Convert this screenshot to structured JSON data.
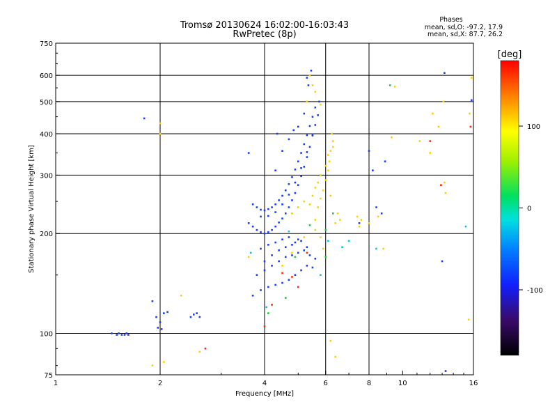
{
  "chart_data": {
    "type": "scatter",
    "title": "Tromsø 20130624 16:02:00-16:03:43",
    "subtitle": "RwPretec (8p)",
    "xlabel": "Frequency [MHz]",
    "ylabel": "Stationary phase Virtual Height [km]",
    "x_scale": "log",
    "y_scale": "log",
    "xlim": [
      1,
      16
    ],
    "ylim": [
      75,
      750
    ],
    "x_ticks": [
      1,
      2,
      4,
      6,
      8,
      10,
      16
    ],
    "y_ticks": [
      75,
      100,
      200,
      300,
      400,
      500,
      600,
      750
    ],
    "grid_x": [
      2,
      4,
      6,
      8
    ],
    "grid_y": [
      100,
      200,
      300,
      400,
      500,
      600
    ],
    "grid": true,
    "legend": {
      "title": "Phases",
      "lines": [
        "mean, sd,O: -97.2, 17.9",
        "mean, sd,X: 87.7, 26.2"
      ],
      "placement": "top-right"
    },
    "colorbar": {
      "label": "[deg]",
      "range": [
        -180,
        180
      ],
      "ticks": [
        100,
        0,
        -100
      ],
      "placement": "right"
    },
    "series": [
      {
        "name": "O",
        "phase_mean": -97.2,
        "color": "#1a3cff",
        "points": [
          [
            1.45,
            100
          ],
          [
            1.5,
            99
          ],
          [
            1.52,
            100
          ],
          [
            1.55,
            99
          ],
          [
            1.58,
            99
          ],
          [
            1.6,
            100
          ],
          [
            1.62,
            99
          ],
          [
            1.8,
            445
          ],
          [
            1.9,
            125
          ],
          [
            1.95,
            112
          ],
          [
            2.0,
            108
          ],
          [
            2.05,
            115
          ],
          [
            2.1,
            116
          ],
          [
            1.97,
            104
          ],
          [
            2.02,
            103
          ],
          [
            2.45,
            112
          ],
          [
            2.5,
            114
          ],
          [
            2.55,
            115
          ],
          [
            2.6,
            112
          ],
          [
            3.6,
            215
          ],
          [
            3.7,
            210
          ],
          [
            3.8,
            205
          ],
          [
            3.9,
            202
          ],
          [
            4.0,
            200
          ],
          [
            4.1,
            202
          ],
          [
            4.2,
            205
          ],
          [
            4.3,
            210
          ],
          [
            4.4,
            216
          ],
          [
            4.5,
            222
          ],
          [
            4.6,
            230
          ],
          [
            4.7,
            240
          ],
          [
            4.8,
            252
          ],
          [
            4.9,
            265
          ],
          [
            5.0,
            280
          ],
          [
            5.1,
            298
          ],
          [
            5.2,
            318
          ],
          [
            5.3,
            340
          ],
          [
            5.4,
            365
          ],
          [
            5.5,
            395
          ],
          [
            5.6,
            425
          ],
          [
            3.7,
            245
          ],
          [
            3.8,
            240
          ],
          [
            3.9,
            236
          ],
          [
            4.0,
            235
          ],
          [
            4.1,
            237
          ],
          [
            4.2,
            240
          ],
          [
            4.3,
            245
          ],
          [
            4.4,
            252
          ],
          [
            4.5,
            260
          ],
          [
            4.6,
            270
          ],
          [
            4.7,
            282
          ],
          [
            4.8,
            296
          ],
          [
            4.9,
            312
          ],
          [
            5.0,
            330
          ],
          [
            5.1,
            350
          ],
          [
            5.2,
            372
          ],
          [
            5.3,
            396
          ],
          [
            5.4,
            422
          ],
          [
            5.5,
            450
          ],
          [
            5.6,
            480
          ],
          [
            3.9,
            225
          ],
          [
            4.1,
            226
          ],
          [
            4.3,
            232
          ],
          [
            4.5,
            245
          ],
          [
            4.7,
            262
          ],
          [
            4.9,
            285
          ],
          [
            5.1,
            315
          ],
          [
            5.3,
            352
          ],
          [
            5.5,
            398
          ],
          [
            5.7,
            455
          ],
          [
            5.75,
            500
          ],
          [
            4.3,
            310
          ],
          [
            4.5,
            355
          ],
          [
            4.7,
            385
          ],
          [
            4.85,
            410
          ],
          [
            5.0,
            420
          ],
          [
            5.2,
            460
          ],
          [
            5.35,
            560
          ],
          [
            5.45,
            620
          ],
          [
            5.3,
            590
          ],
          [
            3.7,
            130
          ],
          [
            3.9,
            135
          ],
          [
            4.1,
            138
          ],
          [
            4.3,
            140
          ],
          [
            4.5,
            142
          ],
          [
            4.7,
            145
          ],
          [
            4.9,
            150
          ],
          [
            5.1,
            155
          ],
          [
            5.3,
            160
          ],
          [
            5.5,
            158
          ],
          [
            3.8,
            150
          ],
          [
            4.0,
            155
          ],
          [
            4.2,
            160
          ],
          [
            4.4,
            165
          ],
          [
            4.6,
            170
          ],
          [
            4.8,
            172
          ],
          [
            5.0,
            175
          ],
          [
            5.2,
            178
          ],
          [
            3.9,
            180
          ],
          [
            4.1,
            185
          ],
          [
            4.3,
            188
          ],
          [
            4.5,
            192
          ],
          [
            4.7,
            195
          ],
          [
            4.9,
            188
          ],
          [
            5.1,
            190
          ],
          [
            5.3,
            182
          ],
          [
            4.0,
            165
          ],
          [
            4.2,
            172
          ],
          [
            4.4,
            178
          ],
          [
            4.6,
            182
          ],
          [
            4.8,
            185
          ],
          [
            5.0,
            192
          ],
          [
            5.4,
            172
          ],
          [
            5.6,
            168
          ],
          [
            3.6,
            350
          ],
          [
            4.35,
            400
          ],
          [
            8.2,
            310
          ],
          [
            8.0,
            355
          ],
          [
            8.9,
            330
          ],
          [
            8.4,
            240
          ],
          [
            7.5,
            215
          ],
          [
            8.7,
            230
          ],
          [
            13.2,
            610
          ],
          [
            13.0,
            165
          ],
          [
            15.8,
            505
          ],
          [
            13.3,
            77
          ]
        ]
      },
      {
        "name": "X",
        "phase_mean": 87.7,
        "color": "#ffd000",
        "points": [
          [
            2.0,
            400
          ],
          [
            2.0,
            430
          ],
          [
            1.9,
            80
          ],
          [
            2.05,
            82
          ],
          [
            2.3,
            130
          ],
          [
            5.6,
            220
          ],
          [
            5.7,
            240
          ],
          [
            5.8,
            255
          ],
          [
            5.9,
            270
          ],
          [
            6.0,
            290
          ],
          [
            6.1,
            310
          ],
          [
            6.15,
            330
          ],
          [
            6.2,
            355
          ],
          [
            6.3,
            380
          ],
          [
            6.25,
            400
          ],
          [
            5.5,
            260
          ],
          [
            5.6,
            275
          ],
          [
            5.7,
            285
          ],
          [
            5.8,
            300
          ],
          [
            6.0,
            320
          ],
          [
            6.1,
            345
          ],
          [
            6.3,
            365
          ],
          [
            5.4,
            600
          ],
          [
            5.5,
            560
          ],
          [
            5.6,
            535
          ],
          [
            5.3,
            500
          ],
          [
            5.8,
            490
          ],
          [
            4.8,
            230
          ],
          [
            5.0,
            240
          ],
          [
            5.2,
            250
          ],
          [
            5.4,
            245
          ],
          [
            6.5,
            230
          ],
          [
            6.6,
            220
          ],
          [
            6.4,
            215
          ],
          [
            6.2,
            260
          ],
          [
            5.6,
            205
          ],
          [
            5.8,
            195
          ],
          [
            5.9,
            180
          ],
          [
            6.0,
            170
          ],
          [
            5.2,
            195
          ],
          [
            4.8,
            175
          ],
          [
            4.5,
            160
          ],
          [
            7.4,
            225
          ],
          [
            7.6,
            220
          ],
          [
            7.5,
            210
          ],
          [
            8.0,
            215
          ],
          [
            8.5,
            225
          ],
          [
            9.5,
            555
          ],
          [
            9.3,
            390
          ],
          [
            11.2,
            380
          ],
          [
            12.0,
            350
          ],
          [
            12.2,
            460
          ],
          [
            12.7,
            420
          ],
          [
            13.1,
            500
          ],
          [
            13.3,
            265
          ],
          [
            13.2,
            285
          ],
          [
            15.8,
            590
          ],
          [
            15.6,
            460
          ],
          [
            15.5,
            110
          ],
          [
            8.8,
            180
          ],
          [
            3.6,
            170
          ],
          [
            6.2,
            95
          ],
          [
            6.4,
            85
          ],
          [
            2.6,
            88
          ]
        ]
      },
      {
        "name": "other",
        "color": "#ff2a00",
        "points": [
          [
            4.0,
            105
          ],
          [
            4.2,
            122
          ],
          [
            4.8,
            148
          ],
          [
            5.0,
            138
          ],
          [
            4.5,
            152
          ],
          [
            5.3,
            175
          ],
          [
            2.7,
            90
          ],
          [
            12.0,
            380
          ],
          [
            15.7,
            420
          ],
          [
            12.9,
            280
          ]
        ]
      },
      {
        "name": "other",
        "color": "#22c83c",
        "points": [
          [
            4.1,
            115
          ],
          [
            4.6,
            128
          ],
          [
            4.9,
            170
          ],
          [
            5.4,
            212
          ],
          [
            6.0,
            205
          ],
          [
            6.3,
            230
          ],
          [
            6.0,
            170
          ],
          [
            9.2,
            560
          ]
        ]
      },
      {
        "name": "other",
        "color": "#00c8e6",
        "points": [
          [
            4.05,
            120
          ],
          [
            3.65,
            175
          ],
          [
            4.7,
            203
          ],
          [
            5.8,
            150
          ],
          [
            6.1,
            190
          ],
          [
            6.7,
            182
          ],
          [
            8.4,
            180
          ],
          [
            15.2,
            210
          ],
          [
            7.0,
            190
          ]
        ]
      }
    ]
  }
}
